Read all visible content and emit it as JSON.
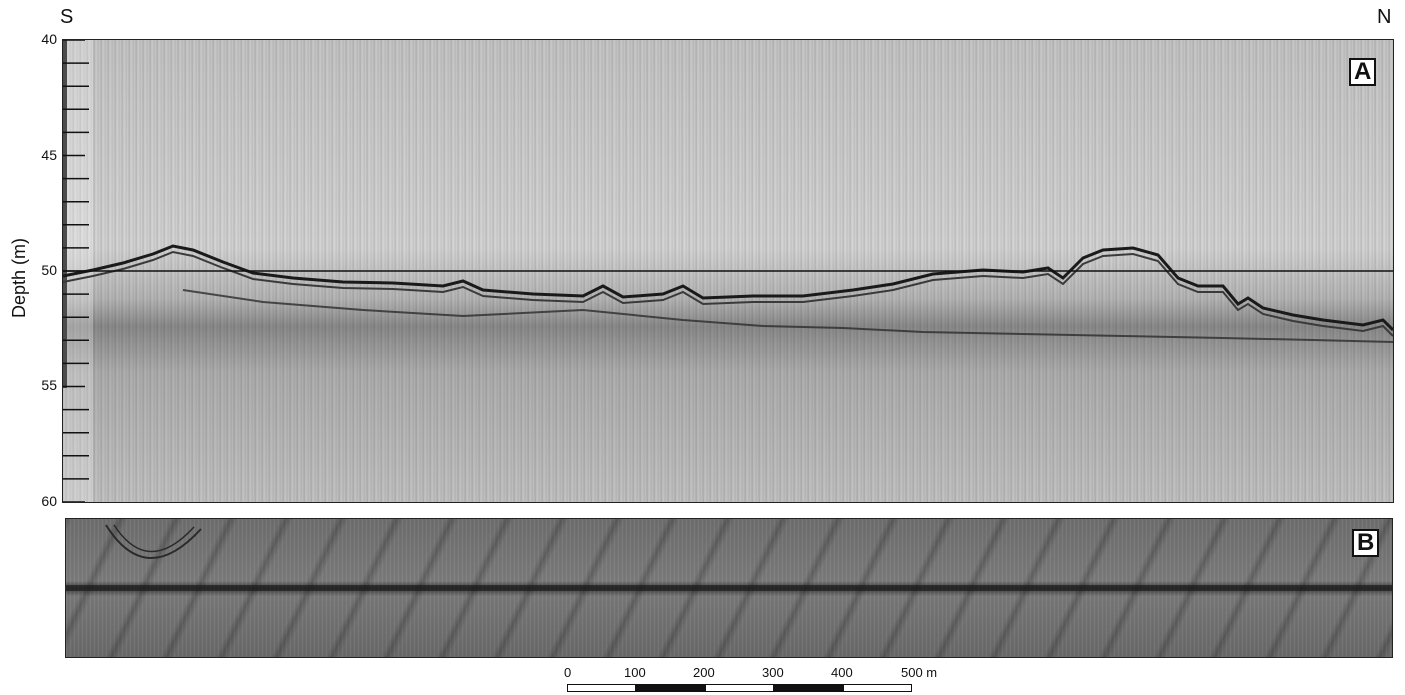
{
  "compass": {
    "left": "S",
    "right": "N"
  },
  "panel_a": {
    "label": "A",
    "y_axis": {
      "label": "Depth (m)",
      "ticks": [
        "40",
        "45",
        "50",
        "55",
        "60"
      ],
      "range": [
        40,
        60
      ],
      "reference_depth": 50
    }
  },
  "panel_b": {
    "label": "B"
  },
  "scale_bar": {
    "labels": [
      "0",
      "100",
      "200",
      "300",
      "400",
      "500 m"
    ],
    "segments": [
      "white",
      "black",
      "white",
      "black",
      "white"
    ]
  }
}
